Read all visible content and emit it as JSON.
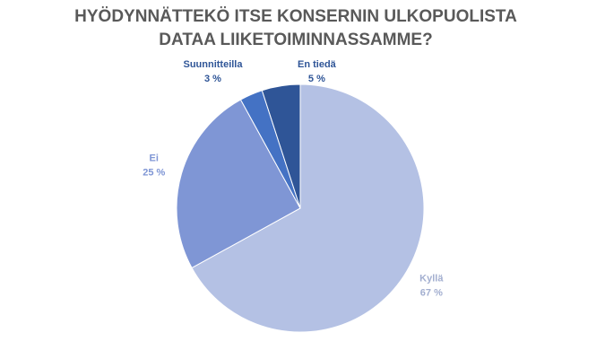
{
  "chart_data": {
    "type": "pie",
    "title": "HYÖDYNNÄTTEKÖ ITSE KONSERNIN ULKOPUOLISTA DATAA LIIKETOIMINNASSAMME?",
    "categories": [
      "Kyllä",
      "Ei",
      "Suunnitteilla",
      "En tiedä"
    ],
    "values": [
      67,
      25,
      3,
      5
    ],
    "value_labels": [
      "67 %",
      "25 %",
      "3 %",
      "5 %"
    ],
    "colors": [
      "#b4c1e4",
      "#7f96d5",
      "#4472c4",
      "#2f5597"
    ]
  }
}
